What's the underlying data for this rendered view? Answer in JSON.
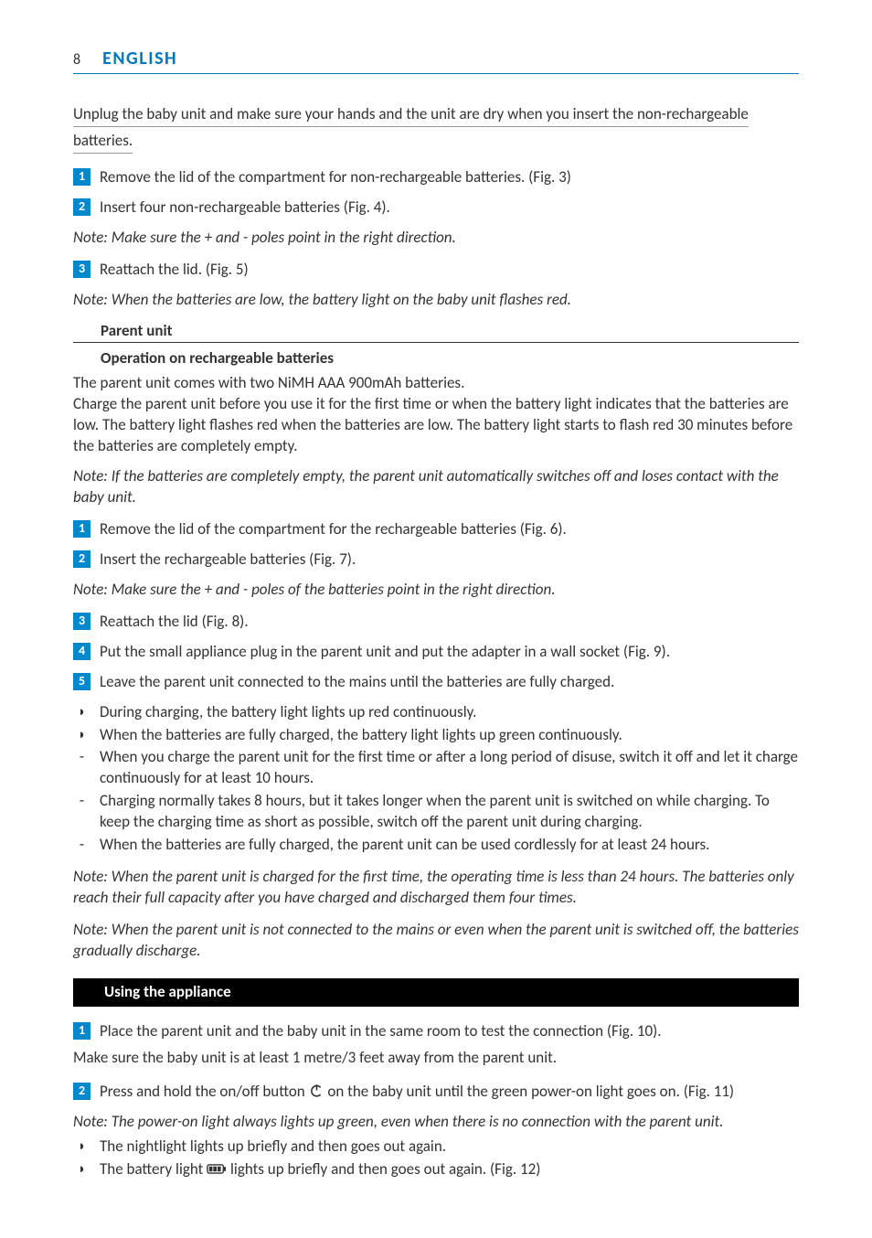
{
  "page_number": "8",
  "language_title": "ENGLISH",
  "intro_underlined": "Unplug the baby unit and make sure your hands and the unit are dry when you insert the non-rechargeable batteries.",
  "steps_a": [
    {
      "n": "1",
      "text": "Remove the lid of the compartment for non-rechargeable batteries.  (Fig. 3)"
    },
    {
      "n": "2",
      "text": "Insert four non-rechargeable batteries (Fig. 4)."
    }
  ],
  "note_a": "Note: Make sure the + and - poles point in the right direction.",
  "steps_b": [
    {
      "n": "3",
      "text": "Reattach the lid.  (Fig. 5)"
    }
  ],
  "note_b": "Note: When the batteries are low, the battery light on the baby unit flashes red.",
  "sub_heading_parent": "Parent unit",
  "sub_sub_recharge": "Operation on rechargeable batteries",
  "para_parent": "The parent unit comes with two NiMH AAA 900mAh batteries.\nCharge the parent unit before you use it for the first time or when the battery light indicates that the batteries are low. The battery light flashes red when the batteries are low. The battery light starts to flash red 30 minutes before the batteries are completely empty.",
  "note_c": "Note: If the batteries are completely empty, the parent unit automatically switches off and loses contact with the baby unit.",
  "steps_c": [
    {
      "n": "1",
      "text": "Remove the lid of the compartment for the rechargeable batteries (Fig. 6)."
    },
    {
      "n": "2",
      "text": "Insert the rechargeable batteries (Fig. 7)."
    }
  ],
  "note_d": "Note: Make sure the + and - poles of the batteries point in the right direction.",
  "steps_d": [
    {
      "n": "3",
      "text": "Reattach the lid (Fig. 8)."
    },
    {
      "n": "4",
      "text": "Put the small appliance plug in the parent unit and put the adapter in a wall socket (Fig. 9)."
    },
    {
      "n": "5",
      "text": "Leave the parent unit connected to the mains until the batteries are fully charged."
    }
  ],
  "bullets_caret_a": [
    "During charging, the battery light lights up red continuously.",
    "When the batteries are fully charged, the battery light lights up green continuously."
  ],
  "bullets_dash": [
    "When you charge the parent unit for the first time or after a long period of disuse, switch it off and let it charge continuously for at least 10 hours.",
    "Charging normally takes 8 hours, but it takes longer when the parent unit is switched on while charging. To keep the charging time as short as possible, switch off the parent unit during charging.",
    "When the batteries are fully charged, the parent unit can be used cordlessly for at least 24 hours."
  ],
  "note_e": "Note: When the parent unit is charged for the first time, the operating time is less than 24 hours. The batteries only reach their full capacity after you have charged and discharged them four times.",
  "note_f": "Note: When the parent unit is not connected to the mains or even when the parent unit is switched off, the batteries gradually discharge.",
  "section_using": "Using the appliance",
  "steps_e": [
    {
      "n": "1",
      "text": "Place the parent unit and the baby unit in the same room to test the connection (Fig. 10)."
    }
  ],
  "para_distance": "Make sure the baby unit is at least 1 metre/3 feet away from the parent unit.",
  "step_power": {
    "n": "2",
    "pre": "Press and hold the on/off button  ",
    "post": " on the baby unit until the green power-on light goes on.  (Fig. 11)"
  },
  "note_g": "Note: The power-on light always lights up green, even when there is no connection with the parent unit.",
  "bullet_caret_b1": "The nightlight lights up briefly and then goes out again.",
  "bullet_caret_b2_pre": "The battery light ",
  "bullet_caret_b2_post": " lights up briefly and then goes out again.  (Fig. 12)",
  "colors": {
    "brand": "#0077b6",
    "step_bg": "#0088cc",
    "text": "#333333",
    "bar_bg": "#000000"
  }
}
